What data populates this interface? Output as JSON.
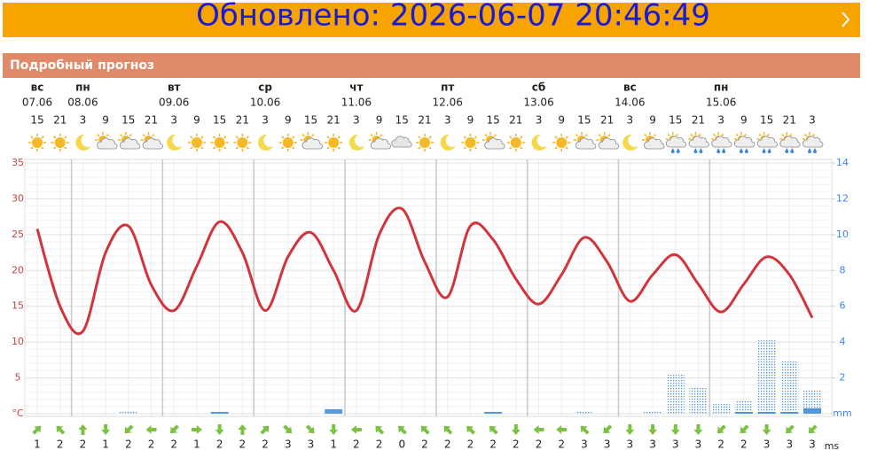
{
  "banner": {
    "title": "Обновлено: 2026-06-07 20:46:49"
  },
  "section_title": "Подробный прогноз",
  "days": [
    {
      "name": "вс",
      "date": "07.06"
    },
    {
      "name": "пн",
      "date": "08.06"
    },
    {
      "name": "вт",
      "date": "09.06"
    },
    {
      "name": "ср",
      "date": "10.06"
    },
    {
      "name": "чт",
      "date": "11.06"
    },
    {
      "name": "пт",
      "date": "12.06"
    },
    {
      "name": "сб",
      "date": "13.06"
    },
    {
      "name": "вс",
      "date": "14.06"
    },
    {
      "name": "пн",
      "date": "15.06"
    }
  ],
  "chart_data": {
    "type": "line",
    "categories": [
      15,
      21,
      3,
      9,
      15,
      21,
      3,
      9,
      15,
      21,
      3,
      9,
      15,
      21,
      3,
      9,
      15,
      21,
      3,
      9,
      15,
      21,
      3,
      9,
      15,
      21,
      3,
      9,
      15,
      21,
      3,
      9,
      15,
      21,
      3
    ],
    "icons": [
      "sun",
      "sun",
      "moon",
      "cloud-sun",
      "cloud-sun",
      "cloud-sun",
      "moon",
      "sun",
      "sun",
      "sun",
      "moon",
      "sun",
      "cloud-sun",
      "sun",
      "moon",
      "cloud-sun",
      "cloud",
      "sun",
      "moon",
      "sun",
      "cloud-sun",
      "sun",
      "moon",
      "sun",
      "cloud-sun",
      "cloud-sun",
      "moon",
      "cloud-sun",
      "rain",
      "rain",
      "rain",
      "rain",
      "rain",
      "rain",
      "rain"
    ],
    "series": [
      {
        "type": "line",
        "color": "#d2343e",
        "values": [
          25.8,
          15,
          11.5,
          22.5,
          26.2,
          18,
          14.4,
          20.6,
          26.8,
          22.5,
          14.4,
          21.9,
          25.3,
          20,
          14.4,
          25,
          28.6,
          21.2,
          16.3,
          26.2,
          24.3,
          18.8,
          15.3,
          19.4,
          24.6,
          21.2,
          15.7,
          19.4,
          22.2,
          18.1,
          14.2,
          18.1,
          21.9,
          19.4,
          13.4
        ]
      },
      {
        "type": "bar",
        "axis": "y2",
        "color": "#3d86d8",
        "pattern": "dotted",
        "values": [
          0,
          0,
          0,
          0,
          0.1,
          0,
          0,
          0,
          0,
          0,
          0,
          0,
          0,
          0,
          0,
          0,
          0,
          0,
          0,
          0,
          0,
          0,
          0,
          0,
          0.1,
          0,
          0,
          0.1,
          2.2,
          1.5,
          0.6,
          0.7,
          4.1,
          3,
          1.3
        ]
      },
      {
        "type": "bar",
        "axis": "y2",
        "color": "#3d86d8",
        "pattern": "solid",
        "values": [
          0,
          0,
          0,
          0,
          0,
          0,
          0,
          0,
          0.1,
          0,
          0,
          0,
          0,
          0.25,
          0,
          0,
          0,
          0,
          0,
          0,
          0.1,
          0,
          0,
          0,
          0,
          0,
          0,
          0,
          0,
          0,
          0,
          0.1,
          0.1,
          0.1,
          0.3
        ]
      }
    ],
    "ylim": [
      0,
      35
    ],
    "yticks": [
      {
        "value": 0,
        "label": "°C"
      },
      5,
      10,
      15,
      20,
      25,
      30,
      35
    ],
    "y2lim": [
      0,
      14
    ],
    "y2ticks": [
      {
        "value": 0,
        "label": "mm"
      },
      2,
      4,
      6,
      8,
      10,
      12,
      14
    ],
    "grid": true,
    "wind_speed": [
      1,
      2,
      2,
      1,
      2,
      2,
      2,
      1,
      2,
      2,
      2,
      3,
      3,
      1,
      2,
      2,
      0,
      2,
      2,
      2,
      2,
      2,
      2,
      2,
      3,
      3,
      3,
      3,
      3,
      3,
      2,
      2,
      3,
      3,
      3
    ],
    "wind_dir": [
      45,
      315,
      0,
      180,
      225,
      270,
      225,
      90,
      180,
      0,
      45,
      135,
      135,
      180,
      270,
      315,
      315,
      315,
      315,
      315,
      315,
      180,
      270,
      270,
      315,
      225,
      180,
      180,
      180,
      180,
      225,
      225,
      180,
      225,
      225
    ],
    "wind_unit": "ms"
  }
}
